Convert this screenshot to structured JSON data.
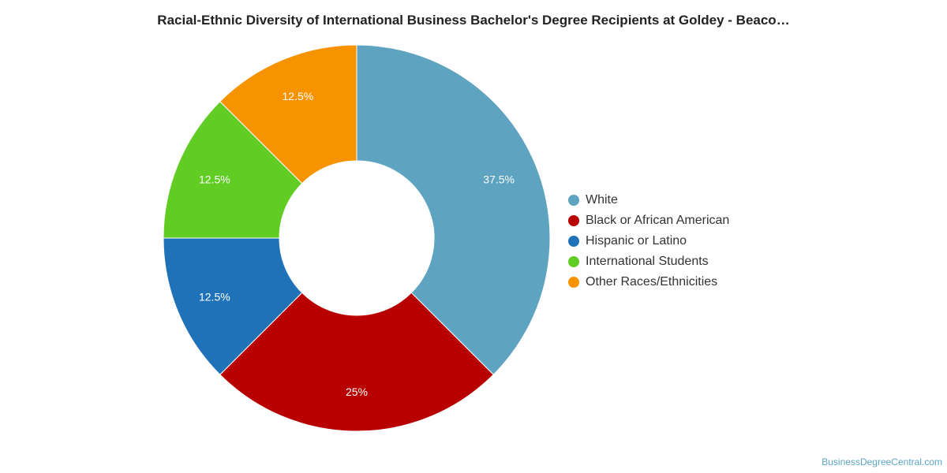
{
  "source_credit": "BusinessDegreeCentral.com",
  "chart_data": {
    "type": "pie",
    "style": "donut",
    "title": "Racial-Ethnic Diversity of International Business Bachelor's Degree Recipients at Goldey - Beaco…",
    "legend_position": "right",
    "series": [
      {
        "name": "White",
        "value": 37.5,
        "label": "37.5%",
        "color": "#5ea3c0"
      },
      {
        "name": "Black or African American",
        "value": 25,
        "label": "25%",
        "color": "#b90000"
      },
      {
        "name": "Hispanic or Latino",
        "value": 12.5,
        "label": "12.5%",
        "color": "#1f72b8"
      },
      {
        "name": "International Students",
        "value": 12.5,
        "label": "12.5%",
        "color": "#61cd24"
      },
      {
        "name": "Other Races/Ethnicities",
        "value": 12.5,
        "label": "12.5%",
        "color": "#f89300"
      }
    ]
  }
}
